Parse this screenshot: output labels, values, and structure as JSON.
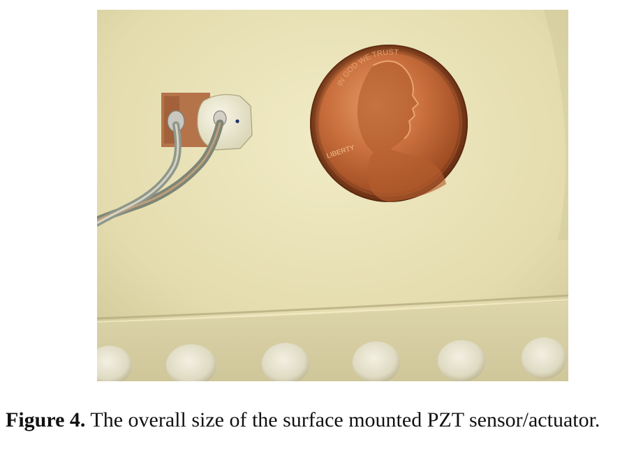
{
  "figure": {
    "label": "Figure 4.",
    "caption": " The overall size of the surface mounted PZT sensor/actuator.",
    "photo": {
      "coin_inscription_top": "IN GOD WE TRUST",
      "coin_inscription_left": "LIBERTY"
    }
  },
  "colors": {
    "background_surface": "#e8e0b4",
    "coin_copper": "#c06a3a",
    "coin_dark": "#8a3f1c",
    "pad_copper": "#b9774a",
    "disc_white": "#efecd8",
    "wire_gray": "#8f978c"
  }
}
